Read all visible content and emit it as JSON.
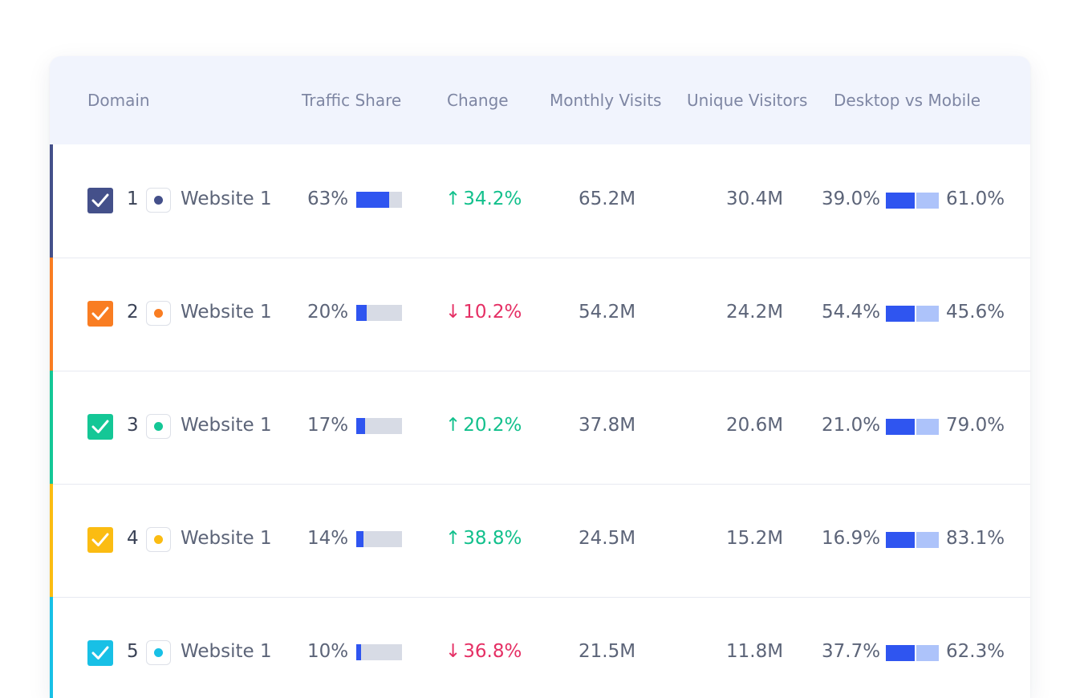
{
  "headers": {
    "domain": "Domain",
    "traffic_share": "Traffic Share",
    "change": "Change",
    "monthly_visits": "Monthly Visits",
    "unique_visitors": "Unique Visitors",
    "desktop_vs_mobile": "Desktop vs Mobile"
  },
  "rows": [
    {
      "rank": "1",
      "site": "Website 1",
      "color": "#44508a",
      "share": "63%",
      "share_fraction": 0.63,
      "change": "34.2%",
      "direction": "up",
      "visits": "65.2M",
      "unique": "30.4M",
      "desktop": "39.0%",
      "mobile": "61.0%",
      "checked": true
    },
    {
      "rank": "2",
      "site": "Website 1",
      "color": "#f97d22",
      "share": "20%",
      "share_fraction": 0.2,
      "change": "10.2%",
      "direction": "down",
      "visits": "54.2M",
      "unique": "24.2M",
      "desktop": "54.4%",
      "mobile": "45.6%",
      "checked": true
    },
    {
      "rank": "3",
      "site": "Website 1",
      "color": "#14c796",
      "share": "17%",
      "share_fraction": 0.17,
      "change": "20.2%",
      "direction": "up",
      "visits": "37.8M",
      "unique": "20.6M",
      "desktop": "21.0%",
      "mobile": "79.0%",
      "checked": true
    },
    {
      "rank": "4",
      "site": "Website 1",
      "color": "#fbbc12",
      "share": "14%",
      "share_fraction": 0.14,
      "change": "38.8%",
      "direction": "up",
      "visits": "24.5M",
      "unique": "15.2M",
      "desktop": "16.9%",
      "mobile": "83.1%",
      "checked": true
    },
    {
      "rank": "5",
      "site": "Website 1",
      "color": "#18c0e6",
      "share": "10%",
      "share_fraction": 0.1,
      "change": "36.8%",
      "direction": "down",
      "visits": "21.5M",
      "unique": "11.8M",
      "desktop": "37.7%",
      "mobile": "62.3%",
      "checked": true
    }
  ],
  "colors": {
    "bar_fill": "#2f55f0",
    "bar_track": "#d7dbe5",
    "mobile_bar": "#adc3fa",
    "up": "#12c08c",
    "down": "#e52f64"
  },
  "icons": {
    "checkbox": "check-icon",
    "favicon": "favicon-dot-icon",
    "up": "arrow-up-icon",
    "down": "arrow-down-icon"
  }
}
